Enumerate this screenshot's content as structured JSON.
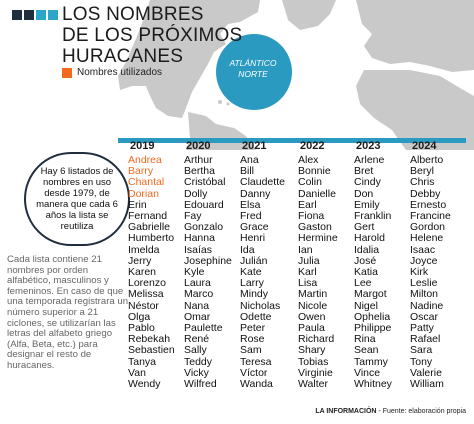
{
  "title": "LOS NOMBRES\nDE LOS PRÓXIMOS\nHURACANES",
  "legend": {
    "label": "Nombres utilizados",
    "color": "#f26a21"
  },
  "map_label": "ATLÁNTICO\nNORTE",
  "info_box": "Hay 6 listados de nombres en uso desde 1979, de manera que cada 6 años la lista se reutiliza",
  "paragraph": "Cada lista contiene 21 nombres por orden alfabético, masculinos y femeninos. En caso de que una temporada registrara un número superior a 21 ciclones, se utilizarían las letras del alfabeto griego (Alfa, Beta, etc.) para designar el resto de huracanes.",
  "footer": {
    "source": "LA INFORMACIÓN",
    "note": " - Fuente: elaboración propia"
  },
  "colors": {
    "accent": "#2a9ac0",
    "used": "#f26a21",
    "dark": "#1f2d3d"
  },
  "columns": [
    {
      "year": "2019",
      "used_count": 4,
      "names": [
        "Andrea",
        "Barry",
        "Chantal",
        "Dorian",
        "Erin",
        "Fernand",
        "Gabrielle",
        "Humberto",
        "Imelda",
        "Jerry",
        "Karen",
        "Lorenzo",
        "Melissa",
        "Néstor",
        "Olga",
        "Pablo",
        "Rebekah",
        "Sebastien",
        "Tanya",
        "Van",
        "Wendy"
      ]
    },
    {
      "year": "2020",
      "used_count": 0,
      "names": [
        "Arthur",
        "Bertha",
        "Cristóbal",
        "Dolly",
        "Edouard",
        "Fay",
        "Gonzalo",
        "Hanna",
        "Isaías",
        "Josephine",
        "Kyle",
        "Laura",
        "Marco",
        "Nana",
        "Omar",
        "Paulette",
        "René",
        "Sally",
        "Teddy",
        "Vicky",
        "Wilfred"
      ]
    },
    {
      "year": "2021",
      "used_count": 0,
      "names": [
        "Ana",
        "Bill",
        "Claudette",
        "Danny",
        "Elsa",
        "Fred",
        "Grace",
        "Henri",
        "Ida",
        "Julián",
        "Kate",
        "Larry",
        "Mindy",
        "Nicholas",
        "Odette",
        "Peter",
        "Rose",
        "Sam",
        "Teresa",
        "Víctor",
        "Wanda"
      ]
    },
    {
      "year": "2022",
      "used_count": 0,
      "names": [
        "Alex",
        "Bonnie",
        "Colin",
        "Danielle",
        "Earl",
        "Fiona",
        "Gaston",
        "Hermine",
        "Ian",
        "Julia",
        "Karl",
        "Lisa",
        "Martin",
        "Nicole",
        "Owen",
        "Paula",
        "Richard",
        "Shary",
        "Tobias",
        "Virginie",
        "Walter"
      ]
    },
    {
      "year": "2023",
      "used_count": 0,
      "names": [
        "Arlene",
        "Bret",
        "Cindy",
        "Don",
        "Emily",
        "Franklin",
        "Gert",
        "Harold",
        "Idalia",
        "José",
        "Katia",
        "Lee",
        "Margot",
        "Nigel",
        "Ophelia",
        "Philippe",
        "Rina",
        "Sean",
        "Tammy",
        "Vince",
        "Whitney"
      ]
    },
    {
      "year": "2024",
      "used_count": 0,
      "names": [
        "Alberto",
        "Beryl",
        "Chris",
        "Debby",
        "Ernesto",
        "Francine",
        "Gordon",
        "Helene",
        "Isaac",
        "Joyce",
        "Kirk",
        "Leslie",
        "Milton",
        "Nadine",
        "Oscar",
        "Patty",
        "Rafael",
        "Sara",
        "Tony",
        "Valerie",
        "William"
      ]
    }
  ]
}
